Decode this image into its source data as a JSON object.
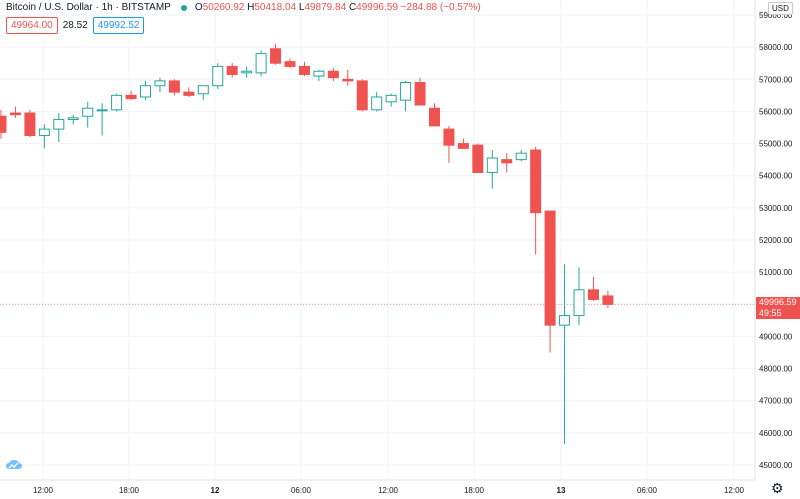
{
  "header": {
    "title": "Bitcoin / U.S. Dollar · 1h · BITSTAMP",
    "open_label": "O",
    "open": "50260.92",
    "high_label": "H",
    "high": "50418.04",
    "low_label": "L",
    "low": "49879.84",
    "close_label": "C",
    "close": "49996.59",
    "change": "−284.88 (−0.57%)"
  },
  "trade_boxes": {
    "sell": "49964.00",
    "spread": "28.52",
    "buy": "49992.52"
  },
  "currency": "USD",
  "price_tag": {
    "price": "49996.59",
    "countdown": "49:55"
  },
  "colors": {
    "up": "#26a69a",
    "down": "#ef5350",
    "grid": "#f0f3fa",
    "text": "#131722"
  },
  "chart_data": {
    "type": "candlestick",
    "symbol": "BTCUSD",
    "timeframe": "1h",
    "y_ticks": [
      "59000.00",
      "58000.00",
      "57000.00",
      "56000.00",
      "55000.00",
      "54000.00",
      "53000.00",
      "52000.00",
      "51000.00",
      "50000.00",
      "49000.00",
      "48000.00",
      "47000.00",
      "46000.00",
      "45000.00"
    ],
    "x_ticks": [
      "12:00",
      "18:00",
      "12",
      "06:00",
      "12:00",
      "18:00",
      "13",
      "06:00",
      "12:00"
    ],
    "ylim": [
      44850,
      59250
    ],
    "grid": true,
    "last_price": 49996.59,
    "candles": [
      {
        "o": 55850,
        "h": 56050,
        "l": 55150,
        "c": 55350
      },
      {
        "o": 55950,
        "h": 56150,
        "l": 55800,
        "c": 55900
      },
      {
        "o": 55950,
        "h": 56050,
        "l": 55200,
        "c": 55250
      },
      {
        "o": 55250,
        "h": 55600,
        "l": 54850,
        "c": 55450
      },
      {
        "o": 55450,
        "h": 55950,
        "l": 55050,
        "c": 55750
      },
      {
        "o": 55750,
        "h": 55900,
        "l": 55600,
        "c": 55800
      },
      {
        "o": 55850,
        "h": 56300,
        "l": 55500,
        "c": 56100
      },
      {
        "o": 56050,
        "h": 56250,
        "l": 55250,
        "c": 56050
      },
      {
        "o": 56050,
        "h": 56550,
        "l": 56000,
        "c": 56500
      },
      {
        "o": 56500,
        "h": 56650,
        "l": 56350,
        "c": 56400
      },
      {
        "o": 56450,
        "h": 56950,
        "l": 56350,
        "c": 56800
      },
      {
        "o": 56800,
        "h": 57050,
        "l": 56600,
        "c": 56950
      },
      {
        "o": 56950,
        "h": 57000,
        "l": 56500,
        "c": 56600
      },
      {
        "o": 56600,
        "h": 56750,
        "l": 56450,
        "c": 56500
      },
      {
        "o": 56550,
        "h": 56800,
        "l": 56350,
        "c": 56800
      },
      {
        "o": 56800,
        "h": 57500,
        "l": 56700,
        "c": 57400
      },
      {
        "o": 57400,
        "h": 57500,
        "l": 57050,
        "c": 57150
      },
      {
        "o": 57200,
        "h": 57400,
        "l": 57050,
        "c": 57250
      },
      {
        "o": 57200,
        "h": 57900,
        "l": 57100,
        "c": 57800
      },
      {
        "o": 57950,
        "h": 58100,
        "l": 57450,
        "c": 57500
      },
      {
        "o": 57550,
        "h": 57650,
        "l": 57350,
        "c": 57400
      },
      {
        "o": 57400,
        "h": 57550,
        "l": 57100,
        "c": 57150
      },
      {
        "o": 57100,
        "h": 57300,
        "l": 56950,
        "c": 57250
      },
      {
        "o": 57250,
        "h": 57350,
        "l": 56950,
        "c": 57050
      },
      {
        "o": 57000,
        "h": 57300,
        "l": 56800,
        "c": 56950
      },
      {
        "o": 56950,
        "h": 57000,
        "l": 56000,
        "c": 56050
      },
      {
        "o": 56050,
        "h": 56600,
        "l": 56000,
        "c": 56450
      },
      {
        "o": 56300,
        "h": 56550,
        "l": 56150,
        "c": 56500
      },
      {
        "o": 56350,
        "h": 56950,
        "l": 56000,
        "c": 56900
      },
      {
        "o": 56900,
        "h": 57050,
        "l": 56200,
        "c": 56200
      },
      {
        "o": 56100,
        "h": 56250,
        "l": 55550,
        "c": 55550
      },
      {
        "o": 55450,
        "h": 55550,
        "l": 54400,
        "c": 54950
      },
      {
        "o": 55000,
        "h": 55150,
        "l": 54850,
        "c": 54850
      },
      {
        "o": 54950,
        "h": 55000,
        "l": 54100,
        "c": 54100
      },
      {
        "o": 54100,
        "h": 54800,
        "l": 53600,
        "c": 54550
      },
      {
        "o": 54500,
        "h": 54700,
        "l": 54100,
        "c": 54400
      },
      {
        "o": 54500,
        "h": 54800,
        "l": 54450,
        "c": 54700
      },
      {
        "o": 54800,
        "h": 54900,
        "l": 51550,
        "c": 52850
      },
      {
        "o": 52900,
        "h": 52900,
        "l": 48500,
        "c": 49350
      },
      {
        "o": 49350,
        "h": 51250,
        "l": 45650,
        "c": 49650
      },
      {
        "o": 49650,
        "h": 51150,
        "l": 49350,
        "c": 50450
      },
      {
        "o": 50450,
        "h": 50850,
        "l": 50100,
        "c": 50150
      },
      {
        "o": 50260.92,
        "h": 50418.04,
        "l": 49879.84,
        "c": 49996.59
      }
    ]
  }
}
